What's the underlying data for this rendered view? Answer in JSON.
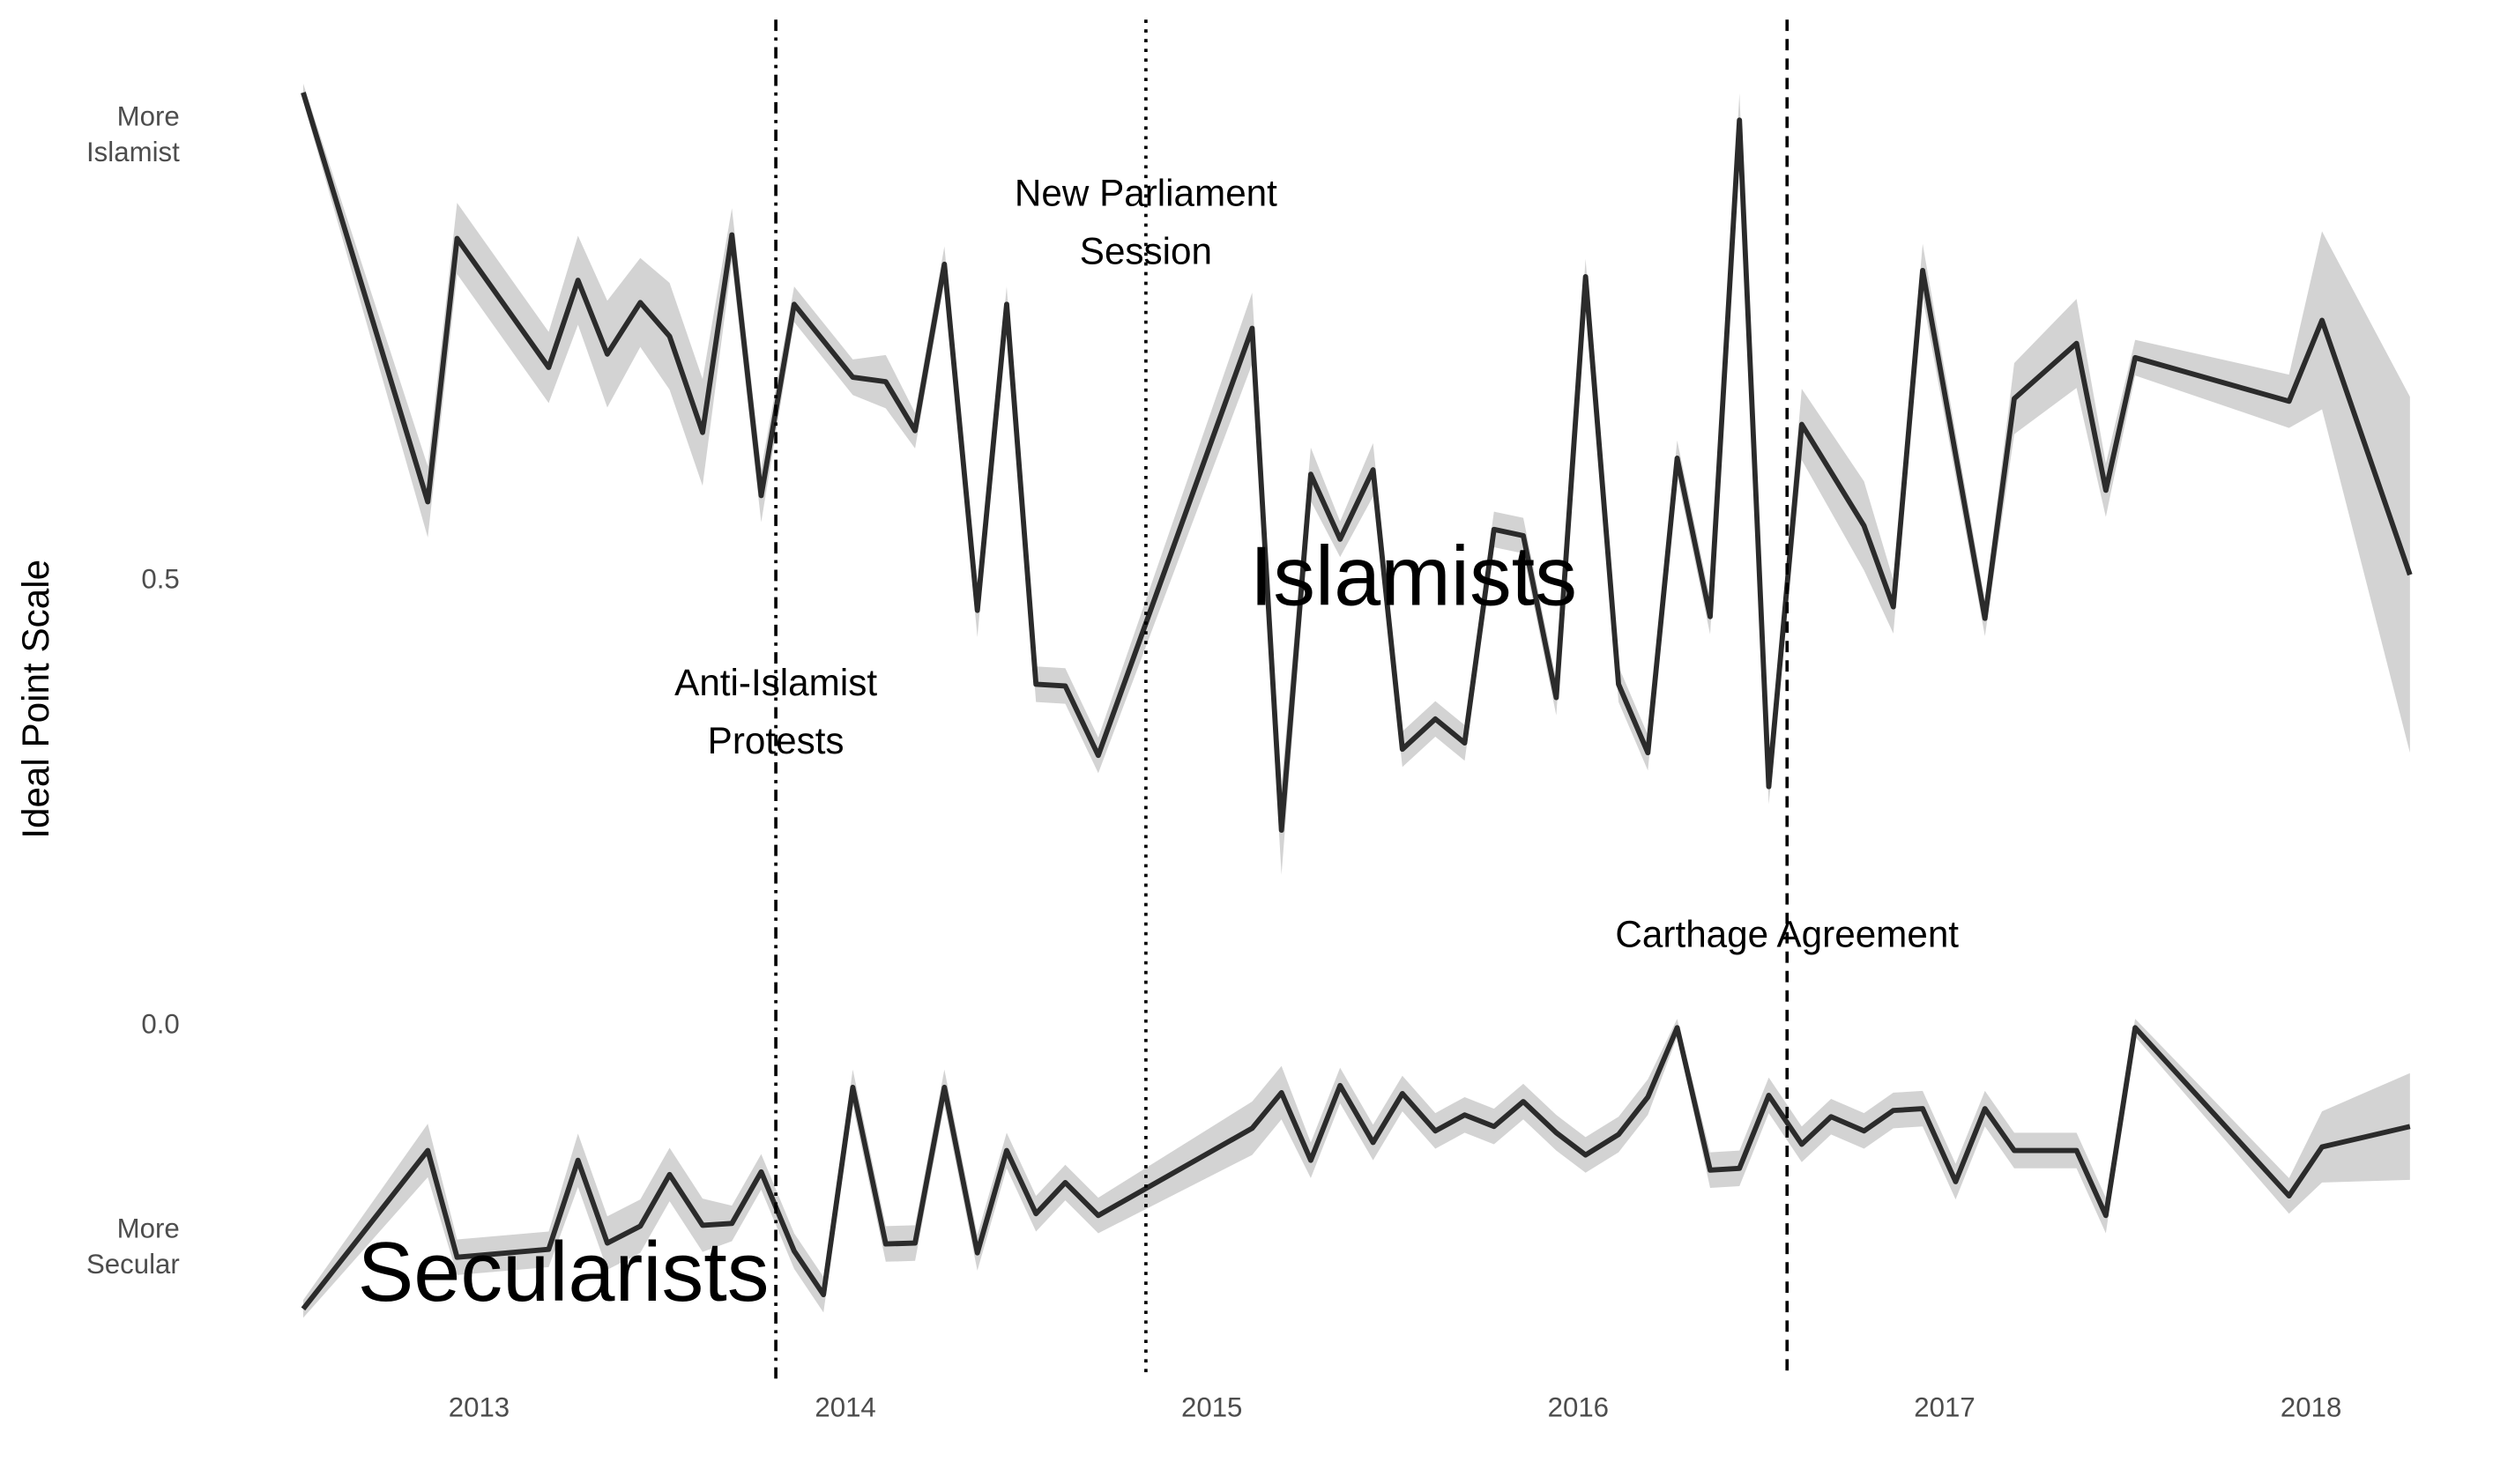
{
  "chart_data": {
    "type": "line",
    "y_label": "Ideal Point Scale",
    "xlim": [
      2012.45,
      2018.35
    ],
    "xticks": [
      2013,
      2014,
      2015,
      2016,
      2017,
      2018
    ],
    "ylim": [
      -0.38,
      1.1
    ],
    "yticks": [
      {
        "value": -0.25,
        "label": [
          "More",
          "Secular"
        ]
      },
      {
        "value": 0,
        "label": "0.0"
      },
      0.5,
      {
        "value": 1,
        "label": [
          "More",
          "Islamist"
        ]
      }
    ],
    "grid": false,
    "ribbon_color": "#d3d3d3",
    "series": [
      {
        "name": "Islamists",
        "color": "#2b2b2b",
        "label_x": 2015.55,
        "label_y": 0.498,
        "x": [
          2012.52,
          2012.86,
          2012.94,
          2013.19,
          2013.27,
          2013.35,
          2013.44,
          2013.52,
          2013.61,
          2013.69,
          2013.77,
          2013.86,
          2014.02,
          2014.11,
          2014.19,
          2014.27,
          2014.36,
          2014.44,
          2014.52,
          2014.6,
          2014.69,
          2015.11,
          2015.19,
          2015.27,
          2015.35,
          2015.44,
          2015.52,
          2015.61,
          2015.69,
          2015.77,
          2015.85,
          2015.94,
          2016.02,
          2016.11,
          2016.19,
          2016.27,
          2016.36,
          2016.44,
          2016.52,
          2016.61,
          2016.78,
          2016.86,
          2016.94,
          2017.11,
          2017.19,
          2017.36,
          2017.44,
          2017.52,
          2017.94,
          2018.03,
          2018.27
        ],
        "values": [
          1.049,
          0.589,
          0.885,
          0.74,
          0.838,
          0.755,
          0.813,
          0.775,
          0.667,
          0.889,
          0.596,
          0.811,
          0.729,
          0.724,
          0.669,
          0.856,
          0.467,
          0.811,
          0.384,
          0.382,
          0.304,
          0.784,
          0.22,
          0.62,
          0.547,
          0.625,
          0.311,
          0.345,
          0.318,
          0.558,
          0.551,
          0.369,
          0.842,
          0.384,
          0.307,
          0.638,
          0.46,
          1.018,
          0.269,
          0.676,
          0.562,
          0.471,
          0.849,
          0.458,
          0.705,
          0.767,
          0.602,
          0.751,
          0.702,
          0.793,
          0.507
        ],
        "lower": [
          1.039,
          0.549,
          0.845,
          0.7,
          0.788,
          0.695,
          0.763,
          0.715,
          0.607,
          0.859,
          0.566,
          0.791,
          0.709,
          0.694,
          0.649,
          0.836,
          0.437,
          0.791,
          0.364,
          0.362,
          0.284,
          0.744,
          0.17,
          0.59,
          0.527,
          0.595,
          0.291,
          0.325,
          0.298,
          0.538,
          0.531,
          0.349,
          0.822,
          0.364,
          0.287,
          0.618,
          0.44,
          0.988,
          0.249,
          0.636,
          0.512,
          0.441,
          0.819,
          0.438,
          0.665,
          0.717,
          0.572,
          0.731,
          0.672,
          0.693,
          0.307
        ],
        "upper": [
          1.059,
          0.629,
          0.925,
          0.78,
          0.888,
          0.815,
          0.863,
          0.835,
          0.727,
          0.919,
          0.626,
          0.831,
          0.749,
          0.754,
          0.689,
          0.876,
          0.497,
          0.831,
          0.404,
          0.402,
          0.324,
          0.824,
          0.27,
          0.65,
          0.567,
          0.655,
          0.331,
          0.365,
          0.338,
          0.578,
          0.571,
          0.389,
          0.862,
          0.404,
          0.327,
          0.658,
          0.48,
          1.048,
          0.289,
          0.716,
          0.612,
          0.501,
          0.879,
          0.478,
          0.745,
          0.817,
          0.632,
          0.771,
          0.732,
          0.893,
          0.707
        ]
      },
      {
        "name": "Secularists",
        "color": "#2b2b2b",
        "label_x": 2013.23,
        "label_y": -0.284,
        "x": [
          2012.52,
          2012.86,
          2012.94,
          2013.19,
          2013.27,
          2013.35,
          2013.44,
          2013.52,
          2013.61,
          2013.69,
          2013.77,
          2013.86,
          2013.94,
          2014.02,
          2014.11,
          2014.19,
          2014.27,
          2014.36,
          2014.44,
          2014.52,
          2014.6,
          2014.69,
          2015.11,
          2015.19,
          2015.27,
          2015.35,
          2015.44,
          2015.52,
          2015.61,
          2015.69,
          2015.77,
          2015.85,
          2015.94,
          2016.02,
          2016.11,
          2016.19,
          2016.27,
          2016.36,
          2016.44,
          2016.52,
          2016.61,
          2016.69,
          2016.78,
          2016.86,
          2016.94,
          2017.03,
          2017.11,
          2017.19,
          2017.36,
          2017.44,
          2017.52,
          2017.94,
          2018.03,
          2018.27
        ],
        "values": [
          -0.318,
          -0.14,
          -0.26,
          -0.251,
          -0.151,
          -0.244,
          -0.225,
          -0.167,
          -0.224,
          -0.222,
          -0.164,
          -0.253,
          -0.302,
          -0.069,
          -0.245,
          -0.244,
          -0.069,
          -0.255,
          -0.14,
          -0.211,
          -0.176,
          -0.213,
          -0.115,
          -0.075,
          -0.151,
          -0.067,
          -0.131,
          -0.076,
          -0.118,
          -0.1,
          -0.113,
          -0.085,
          -0.12,
          -0.145,
          -0.122,
          -0.08,
          -0.002,
          -0.162,
          -0.16,
          -0.078,
          -0.133,
          -0.102,
          -0.118,
          -0.095,
          -0.093,
          -0.175,
          -0.093,
          -0.14,
          -0.14,
          -0.213,
          -0.002,
          -0.191,
          -0.136,
          -0.113
        ],
        "lower": [
          -0.328,
          -0.17,
          -0.28,
          -0.271,
          -0.181,
          -0.274,
          -0.255,
          -0.197,
          -0.254,
          -0.242,
          -0.184,
          -0.273,
          -0.322,
          -0.089,
          -0.265,
          -0.264,
          -0.089,
          -0.275,
          -0.16,
          -0.231,
          -0.196,
          -0.233,
          -0.145,
          -0.105,
          -0.171,
          -0.087,
          -0.151,
          -0.096,
          -0.138,
          -0.12,
          -0.133,
          -0.105,
          -0.14,
          -0.165,
          -0.142,
          -0.1,
          -0.012,
          -0.182,
          -0.18,
          -0.098,
          -0.153,
          -0.122,
          -0.138,
          -0.115,
          -0.113,
          -0.195,
          -0.113,
          -0.16,
          -0.16,
          -0.233,
          -0.012,
          -0.211,
          -0.176,
          -0.173
        ],
        "upper": [
          -0.308,
          -0.11,
          -0.24,
          -0.231,
          -0.121,
          -0.214,
          -0.195,
          -0.137,
          -0.194,
          -0.202,
          -0.144,
          -0.233,
          -0.282,
          -0.049,
          -0.225,
          -0.224,
          -0.049,
          -0.235,
          -0.12,
          -0.191,
          -0.156,
          -0.193,
          -0.085,
          -0.045,
          -0.131,
          -0.047,
          -0.111,
          -0.056,
          -0.098,
          -0.08,
          -0.093,
          -0.065,
          -0.1,
          -0.125,
          -0.102,
          -0.06,
          0.008,
          -0.142,
          -0.14,
          -0.058,
          -0.113,
          -0.082,
          -0.098,
          -0.075,
          -0.073,
          -0.155,
          -0.073,
          -0.12,
          -0.12,
          -0.193,
          0.008,
          -0.171,
          -0.096,
          -0.053
        ]
      }
    ],
    "events": [
      {
        "x": 2013.81,
        "linetype": "dotdash",
        "label": [
          "Anti-Islamist",
          "Protests"
        ],
        "label_y": 0.35
      },
      {
        "x": 2014.82,
        "linetype": "dotted",
        "label": [
          "New Parliament",
          "Session"
        ],
        "label_y": 0.9
      },
      {
        "x": 2016.57,
        "linetype": "dashed",
        "label": [
          "Carthage Agreement"
        ],
        "label_y": 0.1
      }
    ]
  }
}
